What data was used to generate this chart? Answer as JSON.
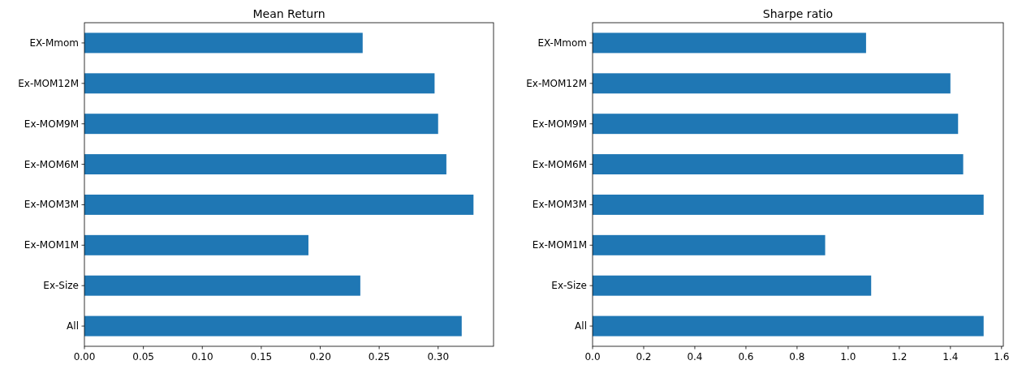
{
  "chart_data": [
    {
      "type": "bar",
      "orientation": "horizontal",
      "title": "Mean Return",
      "categories": [
        "EX-Mmom",
        "Ex-MOM12M",
        "Ex-MOM9M",
        "Ex-MOM6M",
        "Ex-MOM3M",
        "Ex-MOM1M",
        "Ex-Size",
        "All"
      ],
      "values": [
        0.236,
        0.297,
        0.3,
        0.307,
        0.33,
        0.19,
        0.234,
        0.32
      ],
      "color": "#1f77b4",
      "xlim": [
        0,
        0.347
      ],
      "xticks": [
        {
          "value": 0,
          "label": "0.00"
        },
        0.05,
        {
          "value": 0.1,
          "label": "0.10"
        },
        0.15,
        {
          "value": 0.2,
          "label": "0.20"
        },
        0.25,
        {
          "value": 0.3,
          "label": "0.30"
        }
      ],
      "grid": false
    },
    {
      "type": "bar",
      "orientation": "horizontal",
      "title": "Sharpe ratio",
      "categories": [
        "EX-Mmom",
        "Ex-MOM12M",
        "Ex-MOM9M",
        "Ex-MOM6M",
        "Ex-MOM3M",
        "Ex-MOM1M",
        "Ex-Size",
        "All"
      ],
      "values": [
        1.07,
        1.4,
        1.43,
        1.45,
        1.53,
        0.91,
        1.09,
        1.53
      ],
      "color": "#1f77b4",
      "xlim": [
        0,
        1.607
      ],
      "xticks": [
        {
          "value": 0,
          "label": "0.0"
        },
        0.2,
        0.4,
        0.6,
        0.8,
        {
          "value": 1,
          "label": "1.0"
        },
        1.2,
        1.4,
        1.6
      ],
      "grid": false
    }
  ]
}
